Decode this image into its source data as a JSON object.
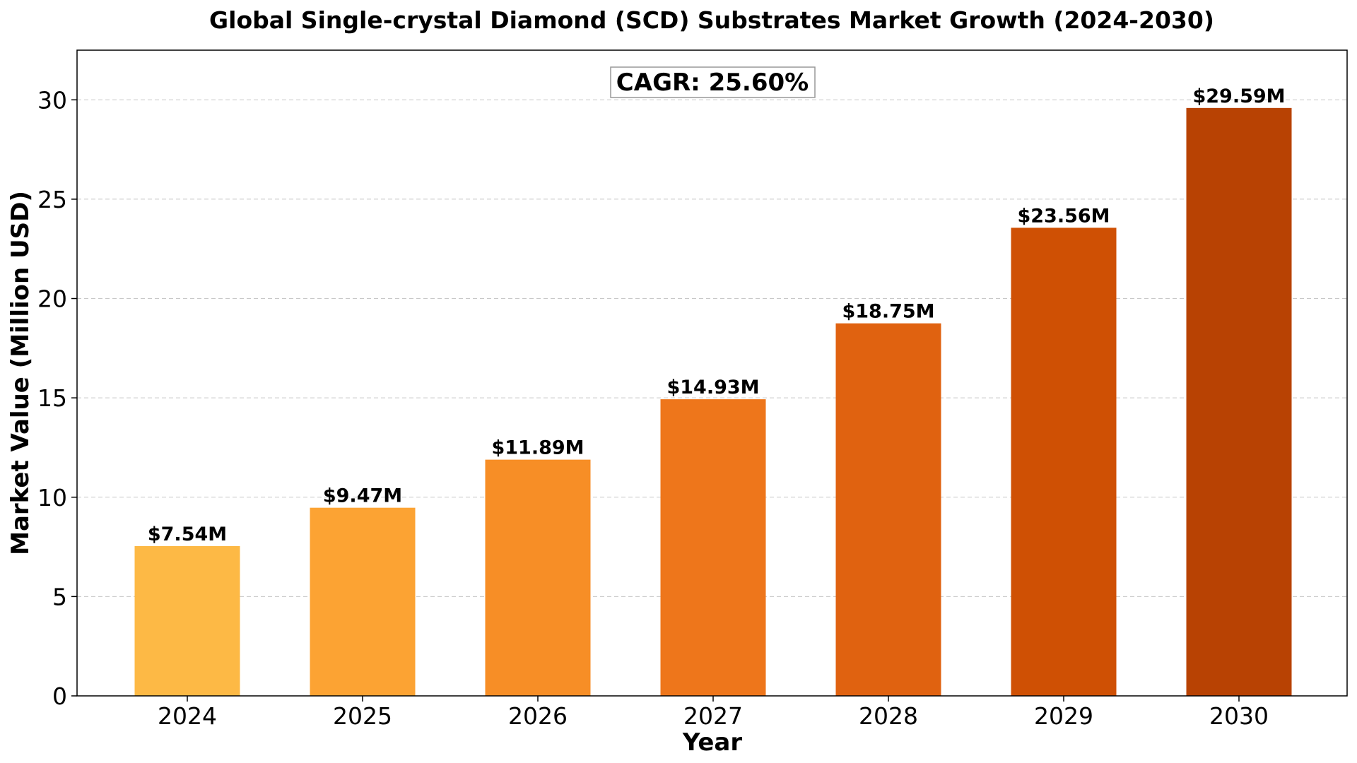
{
  "chart_data": {
    "type": "bar",
    "title": "Global Single-crystal Diamond (SCD) Substrates Market Growth (2024-2030)",
    "xlabel": "Year",
    "ylabel": "Market Value (Million USD)",
    "categories": [
      "2024",
      "2025",
      "2026",
      "2027",
      "2028",
      "2029",
      "2030"
    ],
    "values": [
      7.54,
      9.47,
      11.89,
      14.93,
      18.75,
      23.56,
      29.59
    ],
    "data_labels": [
      "$7.54M",
      "$9.47M",
      "$11.89M",
      "$14.93M",
      "$18.75M",
      "$23.56M",
      "$29.59M"
    ],
    "colors": [
      "#FDB945",
      "#FCA333",
      "#F78E26",
      "#EE761B",
      "#E06210",
      "#CF5004",
      "#B84203"
    ],
    "ylim": [
      0,
      32.5
    ],
    "yticks": [
      0,
      5,
      10,
      15,
      20,
      25,
      30
    ],
    "grid": "y-dashed",
    "annotation": "CAGR: 25.60%"
  }
}
